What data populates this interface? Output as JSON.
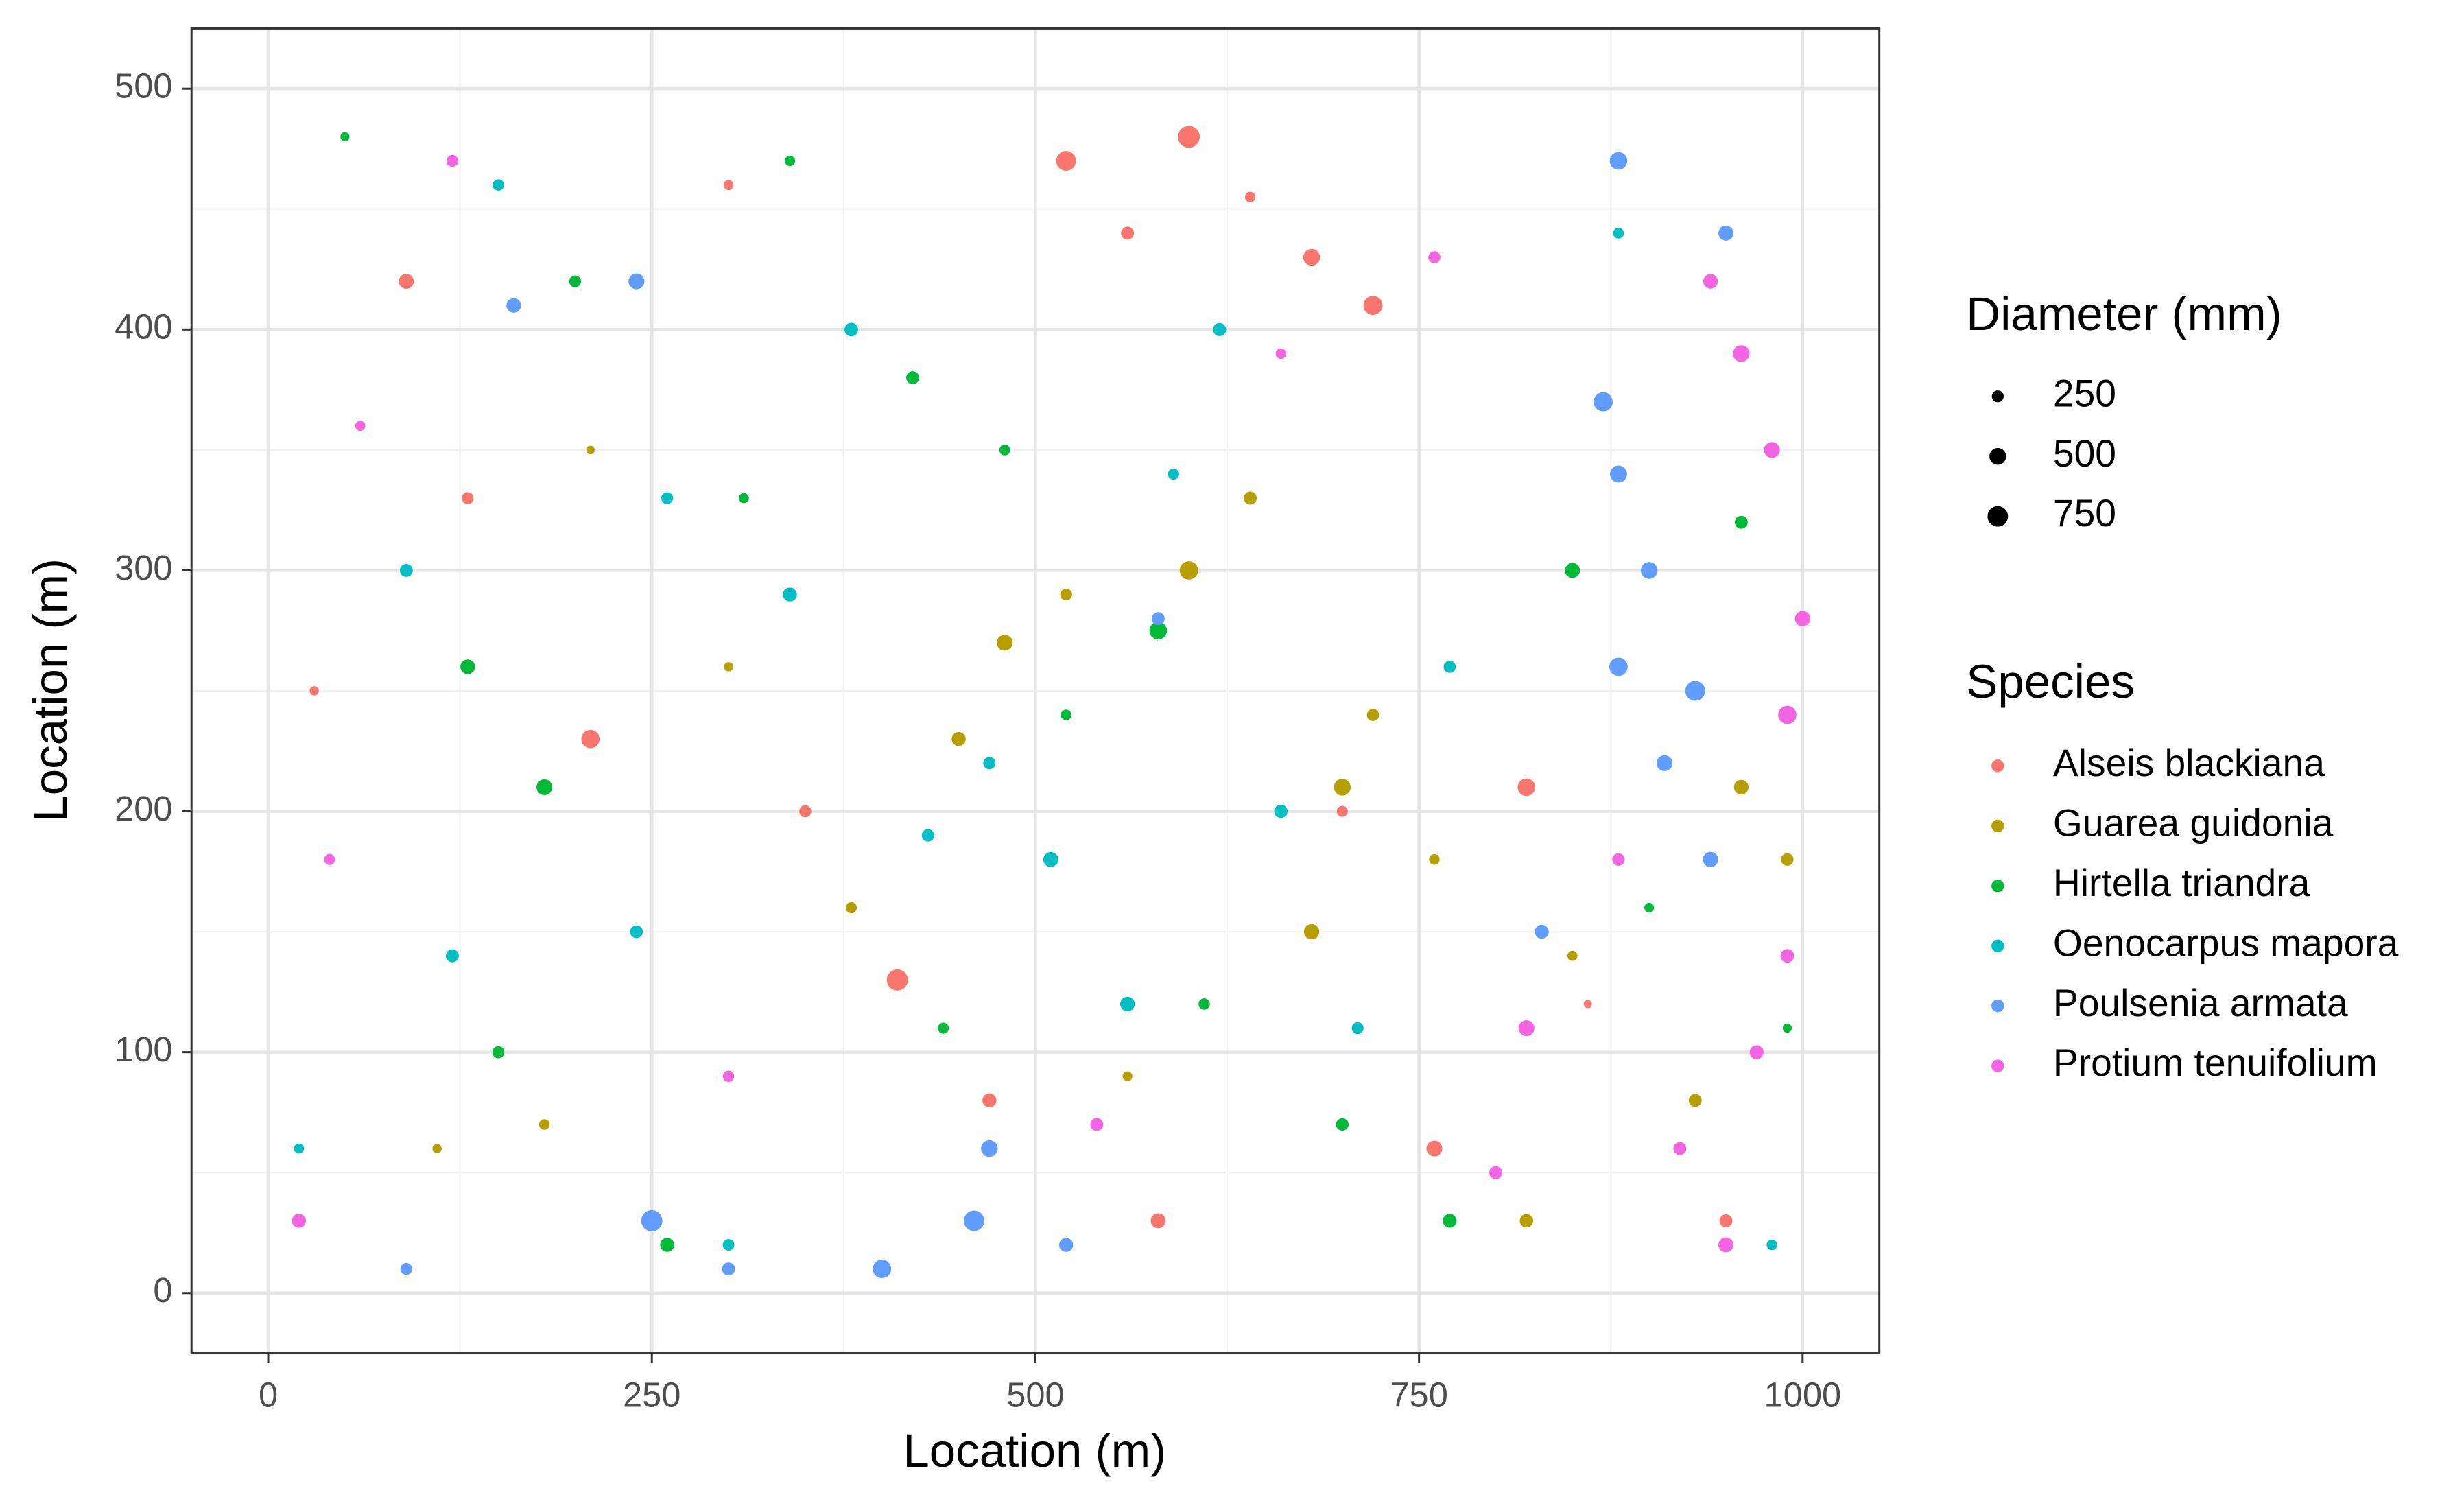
{
  "chart_data": {
    "type": "scatter",
    "x_label": "Location (m)",
    "y_label": "Location (m)",
    "xlim": [
      -50,
      1050
    ],
    "ylim": [
      -25,
      525
    ],
    "xticks": [
      0,
      250,
      500,
      750,
      1000
    ],
    "yticks": [
      0,
      100,
      200,
      300,
      400,
      500
    ],
    "grid": true,
    "size_legend": {
      "title": "Diameter (mm)",
      "values": [
        250,
        500,
        750
      ]
    },
    "color_legend_title": "Species",
    "series": [
      {
        "name": "Alseis blackiana",
        "color": "#F8766D",
        "x": [
          520,
          560,
          600,
          640,
          680,
          720,
          30,
          90,
          130,
          210,
          300,
          410,
          470,
          700,
          760,
          820,
          860,
          950,
          580,
          350
        ],
        "y": [
          470,
          440,
          480,
          455,
          430,
          410,
          250,
          420,
          330,
          230,
          460,
          130,
          80,
          200,
          60,
          210,
          120,
          30,
          30,
          200
        ],
        "sizes": [
          700,
          300,
          850,
          200,
          500,
          650,
          150,
          400,
          250,
          600,
          180,
          800,
          350,
          220,
          450,
          550,
          120,
          300,
          400,
          260
        ]
      },
      {
        "name": "Guarea guidonia",
        "color": "#B79F00",
        "x": [
          640,
          700,
          760,
          300,
          450,
          520,
          680,
          850,
          930,
          600,
          380,
          210,
          960,
          720,
          560,
          480,
          180,
          820,
          110,
          990
        ],
        "y": [
          330,
          210,
          180,
          260,
          230,
          290,
          150,
          140,
          80,
          300,
          160,
          350,
          210,
          240,
          90,
          270,
          70,
          30,
          60,
          180
        ],
        "sizes": [
          300,
          500,
          200,
          150,
          350,
          250,
          420,
          180,
          300,
          600,
          220,
          130,
          380,
          260,
          170,
          450,
          200,
          320,
          150,
          280
        ]
      },
      {
        "name": "Hirtella triandra",
        "color": "#00BA38",
        "x": [
          200,
          180,
          310,
          420,
          520,
          580,
          50,
          260,
          440,
          700,
          850,
          900,
          960,
          150,
          340,
          610,
          770,
          990,
          130,
          480
        ],
        "y": [
          420,
          210,
          330,
          380,
          240,
          275,
          480,
          20,
          110,
          70,
          300,
          160,
          320,
          100,
          470,
          120,
          30,
          110,
          260,
          350
        ],
        "sizes": [
          250,
          450,
          180,
          300,
          200,
          550,
          150,
          350,
          220,
          280,
          400,
          170,
          300,
          260,
          190,
          230,
          340,
          150,
          380,
          210
        ]
      },
      {
        "name": "Oenocarpus mapora",
        "color": "#00BFC4",
        "x": [
          120,
          260,
          340,
          430,
          510,
          590,
          660,
          770,
          20,
          90,
          300,
          380,
          470,
          560,
          880,
          240,
          710,
          150,
          620,
          980
        ],
        "y": [
          140,
          330,
          290,
          190,
          180,
          340,
          200,
          260,
          60,
          300,
          20,
          400,
          220,
          120,
          440,
          150,
          110,
          460,
          400,
          20
        ],
        "sizes": [
          300,
          250,
          350,
          280,
          400,
          220,
          320,
          260,
          180,
          300,
          240,
          330,
          270,
          380,
          210,
          290,
          250,
          230,
          310,
          200
        ]
      },
      {
        "name": "Poulsenia armata",
        "color": "#619CFF",
        "x": [
          870,
          900,
          930,
          950,
          880,
          910,
          400,
          460,
          520,
          470,
          250,
          240,
          160,
          300,
          880,
          940,
          830,
          880,
          580,
          90
        ],
        "y": [
          370,
          300,
          250,
          440,
          470,
          220,
          10,
          30,
          20,
          60,
          30,
          420,
          410,
          10,
          260,
          180,
          150,
          340,
          280,
          10
        ],
        "sizes": [
          650,
          500,
          700,
          400,
          550,
          450,
          600,
          750,
          350,
          500,
          800,
          450,
          380,
          300,
          600,
          420,
          350,
          520,
          300,
          250
        ]
      },
      {
        "name": "Protium tenuifolium",
        "color": "#F564E3",
        "x": [
          960,
          980,
          990,
          940,
          1000,
          970,
          920,
          950,
          880,
          990,
          120,
          40,
          800,
          820,
          660,
          20,
          760,
          300,
          540,
          60
        ],
        "y": [
          390,
          350,
          240,
          420,
          280,
          100,
          60,
          20,
          180,
          140,
          470,
          180,
          50,
          110,
          390,
          30,
          430,
          90,
          70,
          360
        ],
        "sizes": [
          500,
          450,
          600,
          380,
          420,
          350,
          300,
          400,
          280,
          330,
          250,
          220,
          300,
          450,
          200,
          350,
          260,
          230,
          300,
          180
        ]
      }
    ]
  }
}
